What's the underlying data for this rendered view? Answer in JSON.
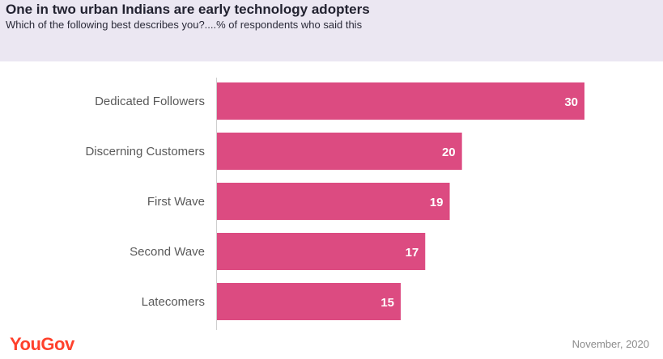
{
  "header": {
    "title": "One in two urban Indians are early technology adopters",
    "subtitle": "Which of the following best describes you?....% of respondents who said this"
  },
  "chart_data": {
    "type": "bar",
    "orientation": "horizontal",
    "categories": [
      "Dedicated Followers",
      "Discerning Customers",
      "First Wave",
      "Second Wave",
      "Latecomers"
    ],
    "values": [
      30,
      20,
      19,
      17,
      15
    ],
    "xlim": [
      0,
      32
    ],
    "grid": false,
    "bar_color": "#dc4b81",
    "label_color": "#ffffff"
  },
  "footer": {
    "logo": "YouGov",
    "date": "November, 2020"
  }
}
